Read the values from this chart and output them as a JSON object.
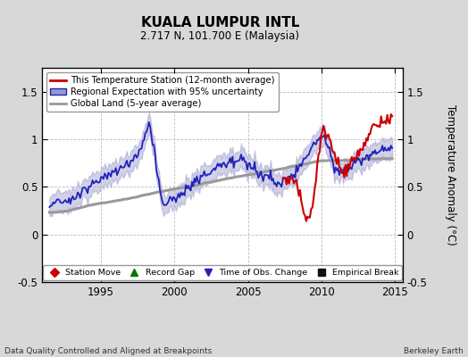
{
  "title": "KUALA LUMPUR INTL",
  "subtitle": "2.717 N, 101.700 E (Malaysia)",
  "xlabel_left": "Data Quality Controlled and Aligned at Breakpoints",
  "xlabel_right": "Berkeley Earth",
  "ylabel": "Temperature Anomaly (°C)",
  "xlim": [
    1991.0,
    2015.5
  ],
  "ylim": [
    -0.5,
    1.75
  ],
  "yticks": [
    -0.5,
    0,
    0.5,
    1.0,
    1.5
  ],
  "ytick_labels": [
    "-0.5",
    "0",
    "0.5",
    "1",
    "1.5"
  ],
  "xticks": [
    1995,
    2000,
    2005,
    2010,
    2015
  ],
  "bg_color": "#d8d8d8",
  "plot_bg_color": "#ffffff",
  "grid_color": "#bbbbbb",
  "legend_entries": [
    "This Temperature Station (12-month average)",
    "Regional Expectation with 95% uncertainty",
    "Global Land (5-year average)"
  ],
  "station_color": "#cc0000",
  "regional_color": "#2222bb",
  "regional_fill_color": "#9999cc",
  "global_color": "#999999",
  "marker_legend": [
    {
      "label": "Station Move",
      "color": "#cc0000",
      "marker": "D"
    },
    {
      "label": "Record Gap",
      "color": "#007700",
      "marker": "^"
    },
    {
      "label": "Time of Obs. Change",
      "color": "#2222bb",
      "marker": "v"
    },
    {
      "label": "Empirical Break",
      "color": "#111111",
      "marker": "s"
    }
  ]
}
